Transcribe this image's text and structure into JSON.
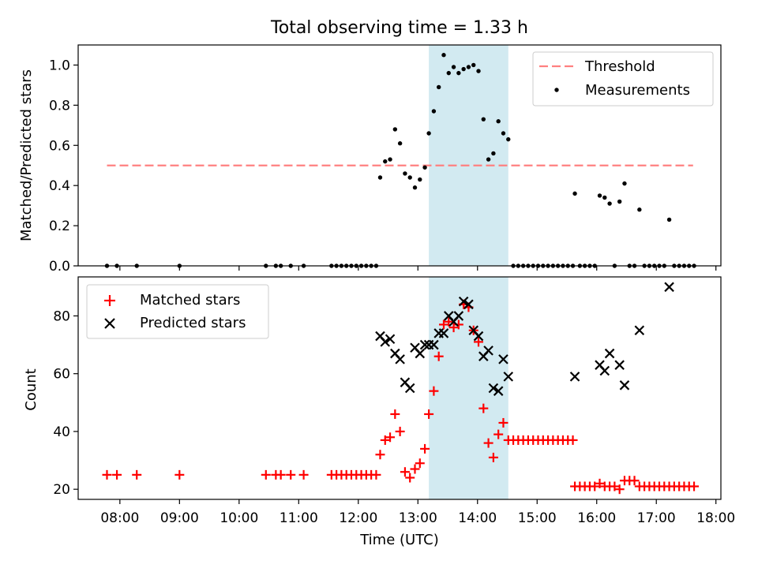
{
  "figure": {
    "title": "Total observing time = 1.33 h",
    "xlabel": "Time (UTC)",
    "colors": {
      "highlight": "#add8e6",
      "threshold": "#ff8080",
      "measurements": "#000000",
      "matched": "#ff0000",
      "predicted": "#000000"
    }
  },
  "chart_data": [
    {
      "type": "scatter",
      "ylabel": "Matched/Predicted stars",
      "xlim": [
        "07:18",
        "18:05"
      ],
      "ylim": [
        0,
        1.1
      ],
      "yticks": [
        0.0,
        0.2,
        0.4,
        0.6,
        0.8,
        1.0
      ],
      "ytick_labels": [
        "0.0",
        "0.2",
        "0.4",
        "0.6",
        "0.8",
        "1.0"
      ],
      "highlight_span": [
        "13:11",
        "14:31"
      ],
      "threshold": {
        "name": "Threshold",
        "y": 0.5,
        "x_range": [
          "07:47",
          "17:37"
        ]
      },
      "legend": {
        "placement": "top-right",
        "entries": [
          "Threshold",
          "Measurements"
        ]
      },
      "series": [
        {
          "name": "Measurements",
          "marker": "dot",
          "points": [
            [
              "07:47",
              0
            ],
            [
              "07:57",
              0
            ],
            [
              "08:17",
              0
            ],
            [
              "09:00",
              0
            ],
            [
              "10:27",
              0
            ],
            [
              "10:37",
              0
            ],
            [
              "10:42",
              0
            ],
            [
              "10:52",
              0
            ],
            [
              "11:05",
              0
            ],
            [
              "11:33",
              0
            ],
            [
              "11:38",
              0
            ],
            [
              "11:43",
              0
            ],
            [
              "11:48",
              0
            ],
            [
              "11:53",
              0
            ],
            [
              "11:58",
              0
            ],
            [
              "12:03",
              0
            ],
            [
              "12:08",
              0
            ],
            [
              "12:13",
              0
            ],
            [
              "12:18",
              0
            ],
            [
              "12:22",
              0.44
            ],
            [
              "12:27",
              0.52
            ],
            [
              "12:32",
              0.53
            ],
            [
              "12:37",
              0.68
            ],
            [
              "12:42",
              0.61
            ],
            [
              "12:47",
              0.46
            ],
            [
              "12:52",
              0.44
            ],
            [
              "12:57",
              0.39
            ],
            [
              "13:02",
              0.43
            ],
            [
              "13:07",
              0.49
            ],
            [
              "13:11",
              0.66
            ],
            [
              "13:16",
              0.77
            ],
            [
              "13:21",
              0.89
            ],
            [
              "13:26",
              1.05
            ],
            [
              "13:31",
              0.96
            ],
            [
              "13:36",
              0.99
            ],
            [
              "13:41",
              0.96
            ],
            [
              "13:46",
              0.98
            ],
            [
              "13:51",
              0.99
            ],
            [
              "13:56",
              1.0
            ],
            [
              "14:01",
              0.97
            ],
            [
              "14:06",
              0.73
            ],
            [
              "14:11",
              0.53
            ],
            [
              "14:16",
              0.56
            ],
            [
              "14:21",
              0.72
            ],
            [
              "14:26",
              0.66
            ],
            [
              "14:31",
              0.63
            ],
            [
              "14:36",
              0
            ],
            [
              "14:41",
              0
            ],
            [
              "14:46",
              0
            ],
            [
              "14:51",
              0
            ],
            [
              "14:56",
              0
            ],
            [
              "15:01",
              0
            ],
            [
              "15:06",
              0
            ],
            [
              "15:11",
              0
            ],
            [
              "15:16",
              0
            ],
            [
              "15:21",
              0
            ],
            [
              "15:26",
              0
            ],
            [
              "15:31",
              0
            ],
            [
              "15:36",
              0
            ],
            [
              "15:38",
              0.36
            ],
            [
              "15:43",
              0
            ],
            [
              "15:48",
              0
            ],
            [
              "15:53",
              0
            ],
            [
              "15:58",
              0
            ],
            [
              "16:03",
              0.35
            ],
            [
              "16:08",
              0.34
            ],
            [
              "16:13",
              0.31
            ],
            [
              "16:18",
              0
            ],
            [
              "16:23",
              0.32
            ],
            [
              "16:28",
              0.41
            ],
            [
              "16:33",
              0
            ],
            [
              "16:38",
              0
            ],
            [
              "16:43",
              0.28
            ],
            [
              "16:48",
              0
            ],
            [
              "16:53",
              0
            ],
            [
              "16:58",
              0
            ],
            [
              "17:03",
              0
            ],
            [
              "17:08",
              0
            ],
            [
              "17:13",
              0.23
            ],
            [
              "17:18",
              0
            ],
            [
              "17:23",
              0
            ],
            [
              "17:28",
              0
            ],
            [
              "17:33",
              0
            ],
            [
              "17:38",
              0
            ]
          ]
        }
      ]
    },
    {
      "type": "scatter",
      "ylabel": "Count",
      "xlabel": "Time (UTC)",
      "xlim": [
        "07:18",
        "18:05"
      ],
      "ylim": [
        16.5,
        93.5
      ],
      "yticks": [
        20,
        40,
        60,
        80
      ],
      "ytick_labels": [
        "20",
        "40",
        "60",
        "80"
      ],
      "xticks": [
        "08:00",
        "09:00",
        "10:00",
        "11:00",
        "12:00",
        "13:00",
        "14:00",
        "15:00",
        "16:00",
        "17:00",
        "18:00"
      ],
      "highlight_span": [
        "13:11",
        "14:31"
      ],
      "legend": {
        "placement": "top-left",
        "entries": [
          "Matched stars",
          "Predicted stars"
        ]
      },
      "series": [
        {
          "name": "Matched stars",
          "marker": "plus",
          "points": [
            [
              "07:47",
              25
            ],
            [
              "07:57",
              25
            ],
            [
              "08:17",
              25
            ],
            [
              "09:00",
              25
            ],
            [
              "10:27",
              25
            ],
            [
              "10:37",
              25
            ],
            [
              "10:42",
              25
            ],
            [
              "10:52",
              25
            ],
            [
              "11:05",
              25
            ],
            [
              "11:33",
              25
            ],
            [
              "11:38",
              25
            ],
            [
              "11:43",
              25
            ],
            [
              "11:48",
              25
            ],
            [
              "11:53",
              25
            ],
            [
              "11:58",
              25
            ],
            [
              "12:03",
              25
            ],
            [
              "12:08",
              25
            ],
            [
              "12:13",
              25
            ],
            [
              "12:18",
              25
            ],
            [
              "12:22",
              32
            ],
            [
              "12:27",
              37
            ],
            [
              "12:32",
              38
            ],
            [
              "12:37",
              46
            ],
            [
              "12:42",
              40
            ],
            [
              "12:47",
              26
            ],
            [
              "12:52",
              24
            ],
            [
              "12:57",
              27
            ],
            [
              "13:02",
              29
            ],
            [
              "13:07",
              34
            ],
            [
              "13:11",
              46
            ],
            [
              "13:16",
              54
            ],
            [
              "13:21",
              66
            ],
            [
              "13:26",
              77
            ],
            [
              "13:31",
              78
            ],
            [
              "13:36",
              76
            ],
            [
              "13:41",
              77
            ],
            [
              "13:46",
              84
            ],
            [
              "13:51",
              83
            ],
            [
              "13:56",
              75
            ],
            [
              "14:01",
              71
            ],
            [
              "14:06",
              48
            ],
            [
              "14:11",
              36
            ],
            [
              "14:16",
              31
            ],
            [
              "14:21",
              39
            ],
            [
              "14:26",
              43
            ],
            [
              "14:31",
              37
            ],
            [
              "14:36",
              37
            ],
            [
              "14:41",
              37
            ],
            [
              "14:46",
              37
            ],
            [
              "14:51",
              37
            ],
            [
              "14:56",
              37
            ],
            [
              "15:01",
              37
            ],
            [
              "15:06",
              37
            ],
            [
              "15:11",
              37
            ],
            [
              "15:16",
              37
            ],
            [
              "15:21",
              37
            ],
            [
              "15:26",
              37
            ],
            [
              "15:31",
              37
            ],
            [
              "15:36",
              37
            ],
            [
              "15:38",
              21
            ],
            [
              "15:43",
              21
            ],
            [
              "15:48",
              21
            ],
            [
              "15:53",
              21
            ],
            [
              "15:58",
              21
            ],
            [
              "16:03",
              22
            ],
            [
              "16:08",
              21
            ],
            [
              "16:13",
              21
            ],
            [
              "16:18",
              21
            ],
            [
              "16:23",
              20
            ],
            [
              "16:28",
              23
            ],
            [
              "16:33",
              23
            ],
            [
              "16:38",
              23
            ],
            [
              "16:43",
              21
            ],
            [
              "16:48",
              21
            ],
            [
              "16:53",
              21
            ],
            [
              "16:58",
              21
            ],
            [
              "17:03",
              21
            ],
            [
              "17:08",
              21
            ],
            [
              "17:13",
              21
            ],
            [
              "17:18",
              21
            ],
            [
              "17:23",
              21
            ],
            [
              "17:28",
              21
            ],
            [
              "17:33",
              21
            ],
            [
              "17:38",
              21
            ]
          ]
        },
        {
          "name": "Predicted stars",
          "marker": "x",
          "points": [
            [
              "12:22",
              73
            ],
            [
              "12:27",
              71
            ],
            [
              "12:32",
              72
            ],
            [
              "12:37",
              67
            ],
            [
              "12:42",
              65
            ],
            [
              "12:47",
              57
            ],
            [
              "12:52",
              55
            ],
            [
              "12:57",
              69
            ],
            [
              "13:02",
              67
            ],
            [
              "13:07",
              70
            ],
            [
              "13:11",
              70
            ],
            [
              "13:16",
              70
            ],
            [
              "13:21",
              74
            ],
            [
              "13:26",
              74
            ],
            [
              "13:31",
              80
            ],
            [
              "13:36",
              78
            ],
            [
              "13:41",
              80
            ],
            [
              "13:46",
              85
            ],
            [
              "13:51",
              84
            ],
            [
              "13:56",
              75
            ],
            [
              "14:01",
              73
            ],
            [
              "14:06",
              66
            ],
            [
              "14:11",
              68
            ],
            [
              "14:16",
              55
            ],
            [
              "14:21",
              54
            ],
            [
              "14:26",
              65
            ],
            [
              "14:31",
              59
            ],
            [
              "15:38",
              59
            ],
            [
              "16:03",
              63
            ],
            [
              "16:08",
              61
            ],
            [
              "16:13",
              67
            ],
            [
              "16:23",
              63
            ],
            [
              "16:28",
              56
            ],
            [
              "16:43",
              75
            ],
            [
              "17:13",
              90
            ]
          ]
        }
      ]
    }
  ]
}
